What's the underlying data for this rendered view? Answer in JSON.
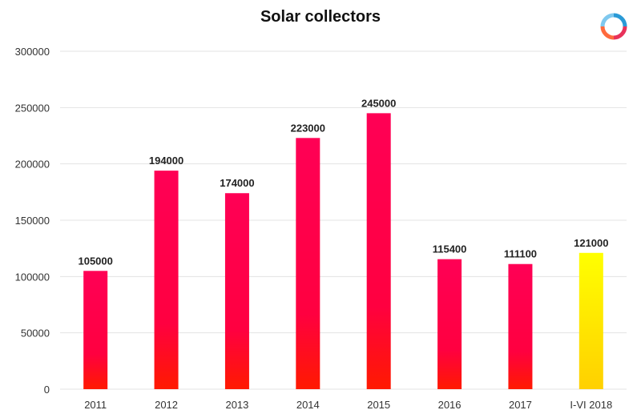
{
  "chart_data": {
    "type": "bar",
    "title": "Solar collectors",
    "xlabel": "",
    "ylabel": "",
    "categories": [
      "2011",
      "2012",
      "2013",
      "2014",
      "2015",
      "2016",
      "2017",
      "I-VI 2018"
    ],
    "values": [
      105000,
      194000,
      174000,
      223000,
      245000,
      115400,
      111100,
      121000
    ],
    "data_labels": [
      "105000",
      "194000",
      "174000",
      "223000",
      "245000",
      "115400",
      "111100",
      "121000"
    ],
    "ylim": [
      0,
      300000
    ],
    "yticks": [
      0,
      50000,
      100000,
      150000,
      200000,
      250000,
      300000
    ],
    "ytick_labels": [
      "0",
      "50000",
      "100000",
      "150000",
      "200000",
      "250000",
      "300000"
    ],
    "grid": "horizontal",
    "legend": "none",
    "colors": {
      "bar_top": "#ff0055",
      "bar_bottom": "#ff1a00",
      "highlight_top": "#ffff00",
      "highlight_bottom": "#ffd000",
      "grid": "#e3e3e3"
    },
    "highlight_index": 7
  },
  "logo": {
    "icon": "circular-arrows-logo-icon"
  }
}
